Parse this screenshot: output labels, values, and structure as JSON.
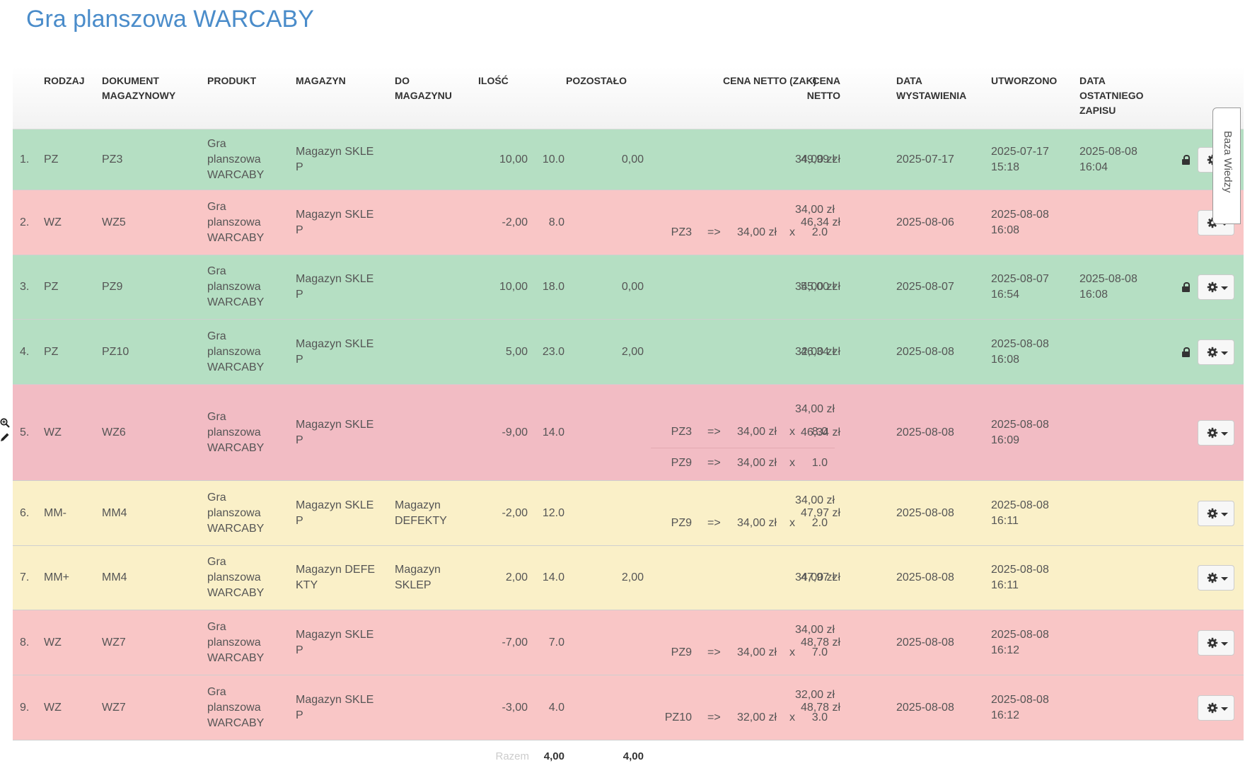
{
  "page": {
    "title": "Gra planszowa WARCABY"
  },
  "colors": {
    "pz": "#b5dfc3",
    "wz": "#f9c6c6",
    "wz_hover": "#f2bcc4",
    "mm": "#faf0c8",
    "accent": "#4a8cca"
  },
  "table": {
    "headers": {
      "rodzaj": "RODZAJ",
      "dokument": "DOKUMENT\nMAGAZYNOWY",
      "produkt": "PRODUKT",
      "magazyn": "MAGAZYN",
      "do_magazynu": "DO\nMAGAZYNU",
      "ilosc": "ILOŚĆ",
      "pozostalo": "POZOSTAŁO",
      "cena_zak": "CENA NETTO (ZAK)",
      "cena_netto": "CENA\nNETTO",
      "data_wyst": "DATA\nWYSTAWIENIA",
      "utworzono": "UTWORZONO",
      "data_zapisu": "DATA\nOSTATNIEGO\nZAPISU"
    },
    "rows": [
      {
        "no": "1.",
        "rodzaj": "PZ",
        "dokument": "PZ3",
        "produkt": "Gra\nplanszowa\nWARCABY",
        "magazyn": "Magazyn SKLE\nP",
        "do_magazynu": "",
        "ilosc": "10,00",
        "stan": "10.0",
        "pozostalo": "0,00",
        "cena_zak": "34,00 zł",
        "cost_lines": [],
        "cena_netto": "49,99 zł",
        "data_wyst": "2025-07-17",
        "utworzono": "2025-07-17\n15:18",
        "data_zapisu": "2025-08-08\n16:04",
        "locked": true
      },
      {
        "no": "2.",
        "rodzaj": "WZ",
        "dokument": "WZ5",
        "produkt": "Gra\nplanszowa\nWARCABY",
        "magazyn": "Magazyn SKLE\nP",
        "do_magazynu": "",
        "ilosc": "-2,00",
        "stan": "8.0",
        "pozostalo": "",
        "cena_zak": "34,00 zł",
        "cost_lines": [
          {
            "doc": "PZ3",
            "arrow": "=>",
            "price": "34,00 zł",
            "x": "x",
            "qty": "2.0"
          }
        ],
        "cena_netto": "46,34 zł",
        "data_wyst": "2025-08-06",
        "utworzono": "2025-08-08\n16:08",
        "data_zapisu": "",
        "locked": false
      },
      {
        "no": "3.",
        "rodzaj": "PZ",
        "dokument": "PZ9",
        "produkt": "Gra\nplanszowa\nWARCABY",
        "magazyn": "Magazyn SKLE\nP",
        "do_magazynu": "",
        "ilosc": "10,00",
        "stan": "18.0",
        "pozostalo": "0,00",
        "cena_zak": "34,00 zł",
        "cost_lines": [],
        "cena_netto": "55,00 zł",
        "data_wyst": "2025-08-07",
        "utworzono": "2025-08-07\n16:54",
        "data_zapisu": "2025-08-08\n16:08",
        "locked": true
      },
      {
        "no": "4.",
        "rodzaj": "PZ",
        "dokument": "PZ10",
        "produkt": "Gra\nplanszowa\nWARCABY",
        "magazyn": "Magazyn SKLE\nP",
        "do_magazynu": "",
        "ilosc": "5,00",
        "stan": "23.0",
        "pozostalo": "2,00",
        "cena_zak": "32,00 zł",
        "cost_lines": [],
        "cena_netto": "46,34 zł",
        "data_wyst": "2025-08-08",
        "utworzono": "2025-08-08\n16:08",
        "data_zapisu": "",
        "locked": true
      },
      {
        "no": "5.",
        "rodzaj": "WZ",
        "dokument": "WZ6",
        "produkt": "Gra\nplanszowa\nWARCABY",
        "magazyn": "Magazyn SKLE\nP",
        "do_magazynu": "",
        "ilosc": "-9,00",
        "stan": "14.0",
        "pozostalo": "",
        "cena_zak": "34,00 zł",
        "cost_lines": [
          {
            "doc": "PZ3",
            "arrow": "=>",
            "price": "34,00 zł",
            "x": "x",
            "qty": "8.0"
          },
          {
            "doc": "PZ9",
            "arrow": "=>",
            "price": "34,00 zł",
            "x": "x",
            "qty": "1.0"
          }
        ],
        "cena_netto": "46,34 zł",
        "data_wyst": "2025-08-08",
        "utworzono": "2025-08-08\n16:09",
        "data_zapisu": "",
        "locked": false
      },
      {
        "no": "6.",
        "rodzaj": "MM-",
        "dokument": "MM4",
        "produkt": "Gra\nplanszowa\nWARCABY",
        "magazyn": "Magazyn SKLE\nP",
        "do_magazynu": "Magazyn\nDEFEKTY",
        "ilosc": "-2,00",
        "stan": "12.0",
        "pozostalo": "",
        "cena_zak": "34,00 zł",
        "cost_lines": [
          {
            "doc": "PZ9",
            "arrow": "=>",
            "price": "34,00 zł",
            "x": "x",
            "qty": "2.0"
          }
        ],
        "cena_netto": "47,97 zł",
        "data_wyst": "2025-08-08",
        "utworzono": "2025-08-08\n16:11",
        "data_zapisu": "",
        "locked": false
      },
      {
        "no": "7.",
        "rodzaj": "MM+",
        "dokument": "MM4",
        "produkt": "Gra\nplanszowa\nWARCABY",
        "magazyn": "Magazyn DEFE\nKTY",
        "do_magazynu": "Magazyn\nSKLEP",
        "ilosc": "2,00",
        "stan": "14.0",
        "pozostalo": "2,00",
        "cena_zak": "34,00 zł",
        "cost_lines": [],
        "cena_netto": "47,97 zł",
        "data_wyst": "2025-08-08",
        "utworzono": "2025-08-08\n16:11",
        "data_zapisu": "",
        "locked": false
      },
      {
        "no": "8.",
        "rodzaj": "WZ",
        "dokument": "WZ7",
        "produkt": "Gra\nplanszowa\nWARCABY",
        "magazyn": "Magazyn SKLE\nP",
        "do_magazynu": "",
        "ilosc": "-7,00",
        "stan": "7.0",
        "pozostalo": "",
        "cena_zak": "34,00 zł",
        "cost_lines": [
          {
            "doc": "PZ9",
            "arrow": "=>",
            "price": "34,00 zł",
            "x": "x",
            "qty": "7.0"
          }
        ],
        "cena_netto": "48,78 zł",
        "data_wyst": "2025-08-08",
        "utworzono": "2025-08-08\n16:12",
        "data_zapisu": "",
        "locked": false
      },
      {
        "no": "9.",
        "rodzaj": "WZ",
        "dokument": "WZ7",
        "produkt": "Gra\nplanszowa\nWARCABY",
        "magazyn": "Magazyn SKLE\nP",
        "do_magazynu": "",
        "ilosc": "-3,00",
        "stan": "4.0",
        "pozostalo": "",
        "cena_zak": "32,00 zł",
        "cost_lines": [
          {
            "doc": "PZ10",
            "arrow": "=>",
            "price": "32,00 zł",
            "x": "x",
            "qty": "3.0"
          }
        ],
        "cena_netto": "48,78 zł",
        "data_wyst": "2025-08-08",
        "utworzono": "2025-08-08\n16:12",
        "data_zapisu": "",
        "locked": false
      }
    ],
    "footer": {
      "label": "Razem",
      "stan_total": "4,00",
      "pozostalo_total": "4,00"
    }
  },
  "side_tab": {
    "label": "Baza Wiedzy"
  },
  "icons": {
    "gear": "gear-icon",
    "caret": "caret-down-icon",
    "lock": "lock-icon",
    "zoom": "zoom-in-icon",
    "edit": "pencil-icon"
  }
}
